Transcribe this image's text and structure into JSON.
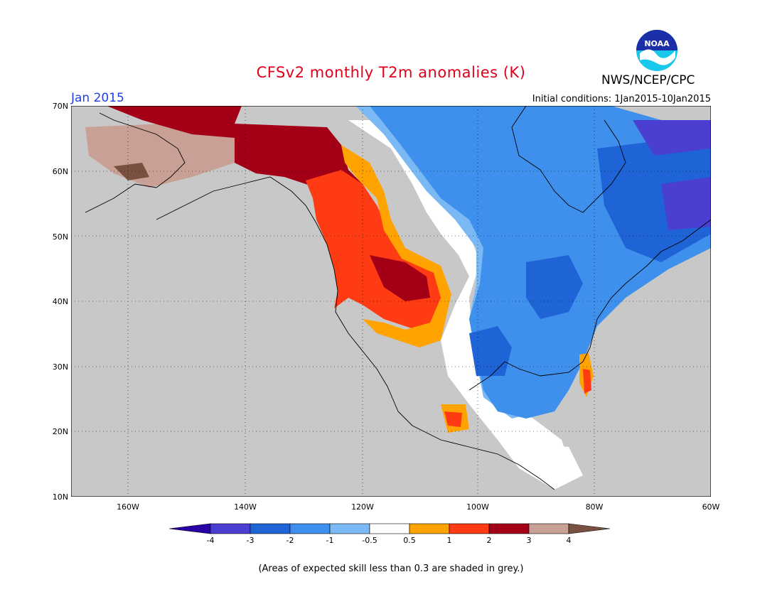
{
  "title": "CFSv2 monthly T2m anomalies (K)",
  "agency": "NWS/NCEP/CPC",
  "logo_text": "NOAA",
  "month": "Jan 2015",
  "initial_conditions": "Initial conditions: 1Jan2015-10Jan2015",
  "lat_labels": [
    "70N",
    "60N",
    "50N",
    "40N",
    "30N",
    "20N",
    "10N"
  ],
  "lon_labels": [
    "160W",
    "140W",
    "120W",
    "100W",
    "80W",
    "60W"
  ],
  "colorbar": {
    "labels": [
      "-4",
      "-3",
      "-2",
      "-1",
      "-0.5",
      "0.5",
      "1",
      "2",
      "3",
      "4"
    ],
    "colors": [
      "#2c00a8",
      "#4a3fd0",
      "#1f64d6",
      "#3f90ec",
      "#7ab9f4",
      "#ffffff",
      "#ffa300",
      "#ff3b14",
      "#a30018",
      "#c8a095",
      "#7a5040"
    ]
  },
  "colors": {
    "no_skill": "#c8c8c8",
    "title": "#e0001c",
    "month": "#1e40e8"
  },
  "footer": "(Areas of expected skill less than 0.3 are shaded in grey.)"
}
